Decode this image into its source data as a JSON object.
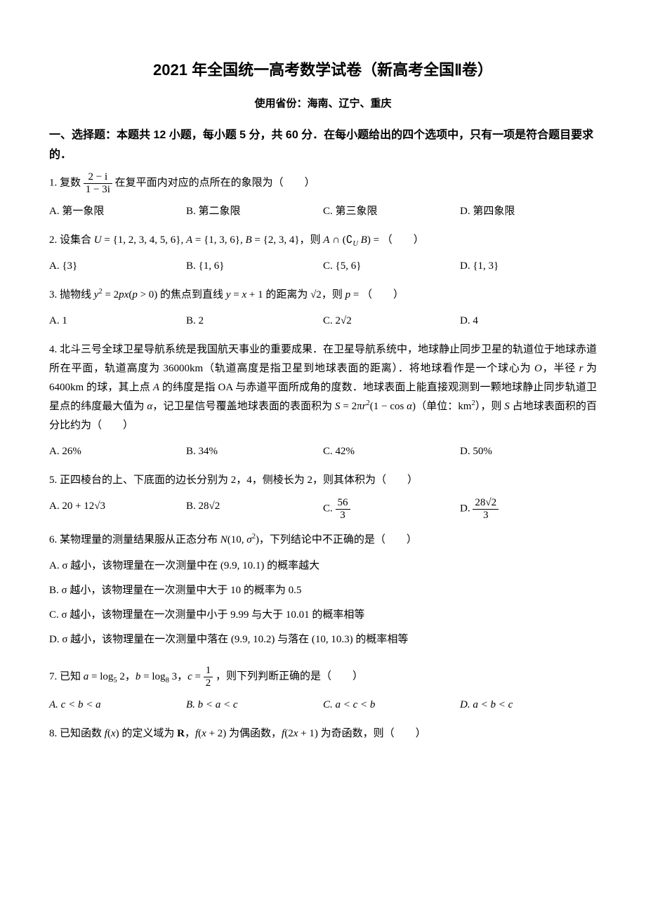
{
  "title": "2021 年全国统一高考数学试卷（新高考全国Ⅱ卷）",
  "subtitle": "使用省份：海南、辽宁、重庆",
  "section_heading": "一、选择题：本题共 12 小题，每小题 5 分，共 60 分．在每小题给出的四个选项中，只有一项是符合题目要求的．",
  "q1": {
    "num": "1.",
    "prefix": "复数",
    "frac_num": "2 − i",
    "frac_den": "1 − 3i",
    "suffix": "在复平面内对应的点所在的象限为（　　）",
    "A": "A. 第一象限",
    "B": "B. 第二象限",
    "C": "C. 第三象限",
    "D": "D. 第四象限"
  },
  "q2": {
    "text": "2. 设集合 U = {1, 2, 3, 4, 5, 6}, A = {1, 3, 6}, B = {2, 3, 4}，则 A ∩ (∁U B) = （　　）",
    "A": "A. {3}",
    "B": "B. {1, 6}",
    "C": "C. {5, 6}",
    "D": "D. {1, 3}"
  },
  "q3": {
    "text": "3. 抛物线 y² = 2px (p > 0) 的焦点到直线 y = x + 1 的距离为 √2，则 p = （　　）",
    "A": "A. 1",
    "B": "B. 2",
    "C": "C. 2√2",
    "D": "D. 4"
  },
  "q4": {
    "text": "4. 北斗三号全球卫星导航系统是我国航天事业的重要成果．在卫星导航系统中，地球静止同步卫星的轨道位于地球赤道所在平面，轨道高度为 36000km（轨道高度是指卫星到地球表面的距离）．将地球看作是一个球心为 O，半径 r 为 6400km 的球，其上点 A 的纬度是指 OA 与赤道平面所成角的度数．地球表面上能直接观测到一颗地球静止同步轨道卫星点的纬度最大值为 α，记卫星信号覆盖地球表面的表面积为 S = 2πr²(1 − cos α)（单位：km²），则 S 占地球表面积的百分比约为（　　）",
    "A": "A. 26%",
    "B": "B. 34%",
    "C": "C. 42%",
    "D": "D. 50%"
  },
  "q5": {
    "text": "5. 正四棱台的上、下底面的边长分别为 2，4，侧棱长为 2，则其体积为（　　）",
    "A": "A. 20 + 12√3",
    "B": "B. 28√2",
    "C_prefix": "C. ",
    "C_num": "56",
    "C_den": "3",
    "D_prefix": "D. ",
    "D_num": "28√2",
    "D_den": "3"
  },
  "q6": {
    "text": "6. 某物理量的测量结果服从正态分布 N(10, σ²)，下列结论中不正确的是（　　）",
    "A": "A. σ 越小，该物理量在一次测量中在 (9.9, 10.1) 的概率越大",
    "B": "B. σ 越小，该物理量在一次测量中大于 10 的概率为 0.5",
    "C": "C. σ 越小，该物理量在一次测量中小于 9.99 与大于 10.01 的概率相等",
    "D": "D. σ 越小，该物理量在一次测量中落在 (9.9, 10.2) 与落在 (10, 10.3) 的概率相等"
  },
  "q7": {
    "prefix": "7. 已知 a = log₅ 2，b = log₈ 3，c = ",
    "frac_num": "1",
    "frac_den": "2",
    "suffix": "，则下列判断正确的是（　　）",
    "A": "A. c < b < a",
    "B": "B. b < a < c",
    "C": "C. a < c < b",
    "D": "D. a < b < c"
  },
  "q8": {
    "text": "8. 已知函数 f(x) 的定义域为 R，f(x + 2) 为偶函数，f(2x + 1) 为奇函数，则（　　）"
  }
}
